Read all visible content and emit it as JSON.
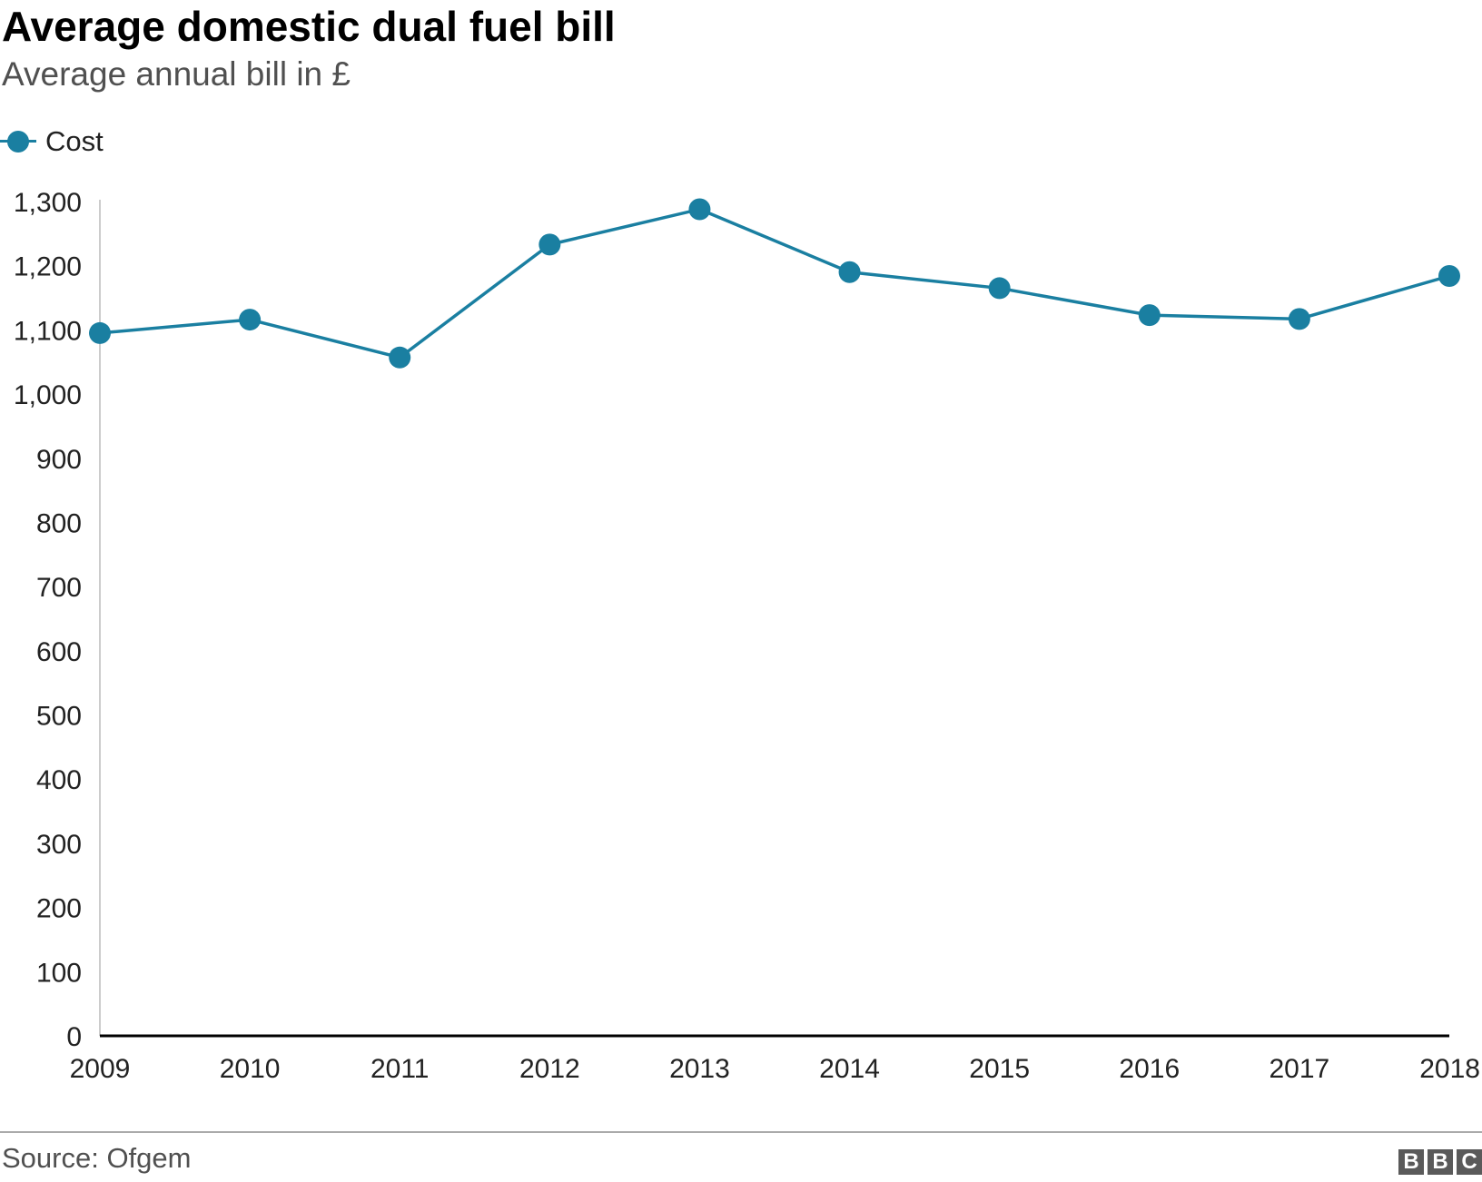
{
  "title": "Average domestic dual fuel bill",
  "subtitle": "Average annual bill in £",
  "legend": {
    "label": "Cost"
  },
  "source": "Source: Ofgem",
  "logo": {
    "letters": [
      "B",
      "B",
      "C"
    ]
  },
  "colors": {
    "series": "#1a7fa1",
    "axis": "#000000",
    "vaxis": "#cccccc"
  },
  "chart_data": {
    "type": "line",
    "title": "Average domestic dual fuel bill",
    "subtitle": "Average annual bill in £",
    "xlabel": "",
    "ylabel": "",
    "x": [
      "2009",
      "2010",
      "2011",
      "2012",
      "2013",
      "2014",
      "2015",
      "2016",
      "2017",
      "2018"
    ],
    "series": [
      {
        "name": "Cost",
        "values": [
          1095,
          1116,
          1057,
          1233,
          1288,
          1190,
          1165,
          1123,
          1117,
          1184
        ]
      }
    ],
    "yticks": [
      0,
      100,
      200,
      300,
      400,
      500,
      600,
      700,
      800,
      900,
      1000,
      1100,
      1200,
      1300
    ],
    "ytick_labels": [
      "0",
      "100",
      "200",
      "300",
      "400",
      "500",
      "600",
      "700",
      "800",
      "900",
      "1,000",
      "1,100",
      "1,200",
      "1,300"
    ],
    "ylim": [
      0,
      1300
    ],
    "grid": false,
    "legend_position": "top-left"
  }
}
